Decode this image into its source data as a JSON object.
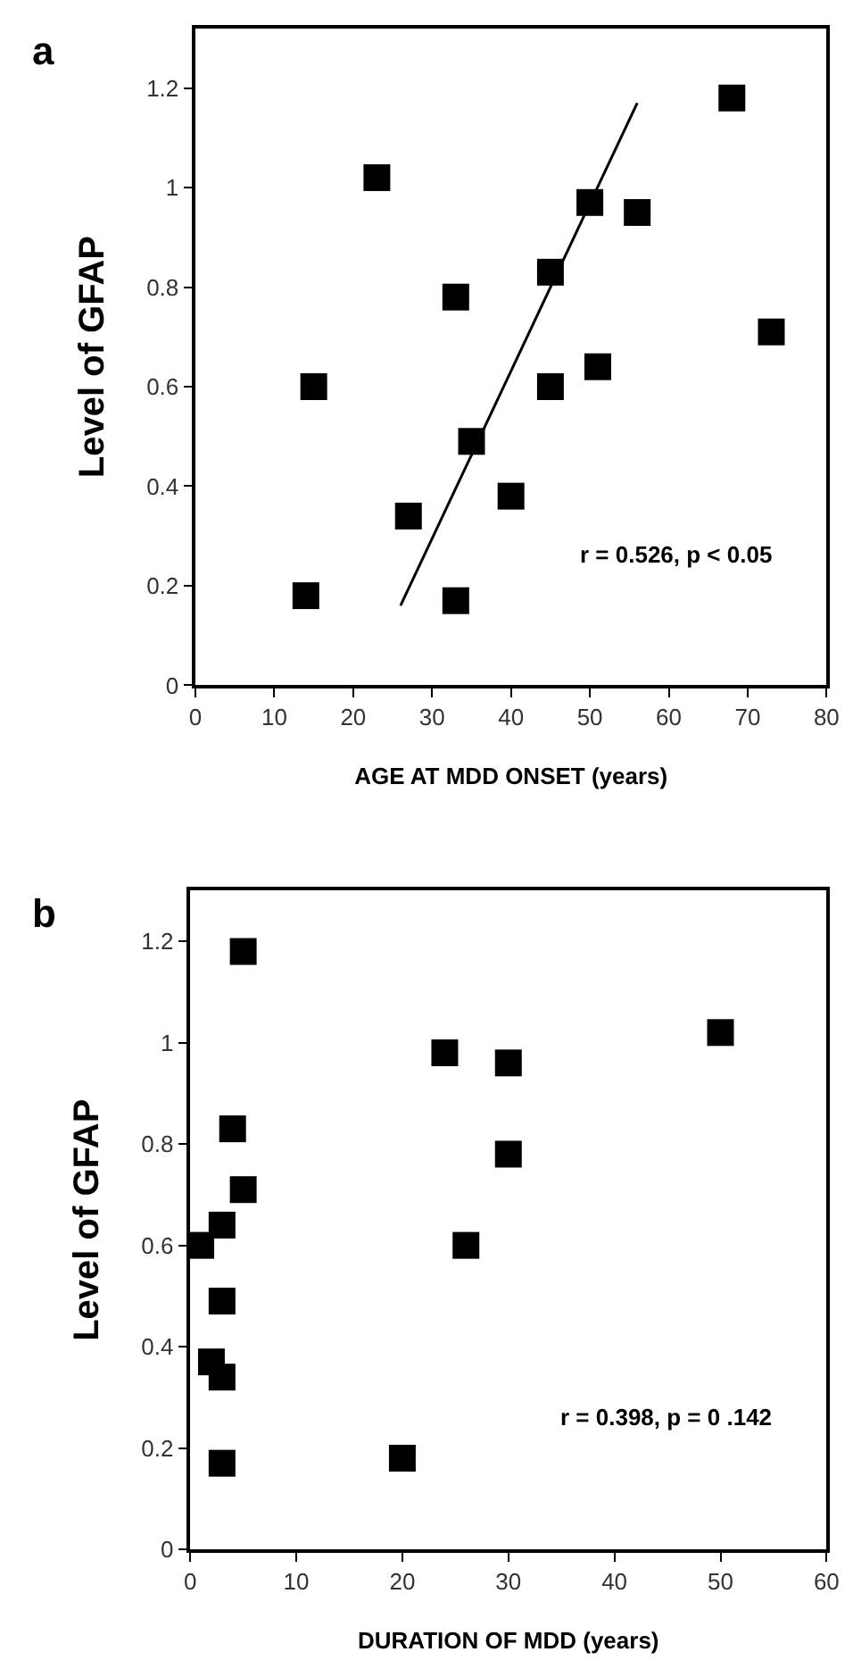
{
  "chart_data": [
    {
      "type": "scatter",
      "title": "a",
      "xlabel": "AGE AT MDD ONSET (years)",
      "ylabel": "Level of GFAP",
      "xlim": [
        0,
        80
      ],
      "xticks": [
        0,
        10,
        20,
        30,
        40,
        50,
        60,
        70,
        80
      ],
      "ylim": [
        0,
        1.32
      ],
      "yticks": [
        0,
        0.2,
        0.4,
        0.6,
        0.8,
        1,
        1.2
      ],
      "grid": false,
      "series": [
        {
          "marker": "square",
          "color": "#000000",
          "x": [
            14,
            15,
            23,
            27,
            33,
            33,
            35,
            40,
            45,
            45,
            50,
            51,
            56,
            68,
            73
          ],
          "values": [
            0.18,
            0.6,
            1.02,
            0.34,
            0.78,
            0.17,
            0.49,
            0.38,
            0.83,
            0.6,
            0.97,
            0.64,
            0.95,
            1.18,
            0.71
          ]
        },
        {
          "type": "line",
          "marker": "none",
          "line_style": "solid",
          "color": "#000000",
          "x": [
            26,
            56
          ],
          "values": [
            0.16,
            1.17
          ]
        }
      ],
      "annotations": [
        "r = 0.526, p < 0.05"
      ]
    },
    {
      "type": "scatter",
      "title": "b",
      "xlabel": "DURATION OF MDD (years)",
      "ylabel": "Level of GFAP",
      "xlim": [
        0,
        60
      ],
      "xticks": [
        0,
        10,
        20,
        30,
        40,
        50,
        60
      ],
      "ylim": [
        0,
        1.3
      ],
      "yticks": [
        0,
        0.2,
        0.4,
        0.6,
        0.8,
        1,
        1.2
      ],
      "grid": false,
      "series": [
        {
          "marker": "square",
          "color": "#000000",
          "x": [
            1,
            2,
            3,
            3,
            3,
            3,
            4,
            5,
            5,
            20,
            24,
            26,
            30,
            30,
            50
          ],
          "values": [
            0.6,
            0.37,
            0.34,
            0.49,
            0.64,
            0.17,
            0.83,
            0.71,
            1.18,
            0.18,
            0.98,
            0.6,
            0.96,
            0.78,
            1.02
          ]
        }
      ],
      "annotations": [
        "r = 0.398, p = 0 .142"
      ]
    }
  ]
}
